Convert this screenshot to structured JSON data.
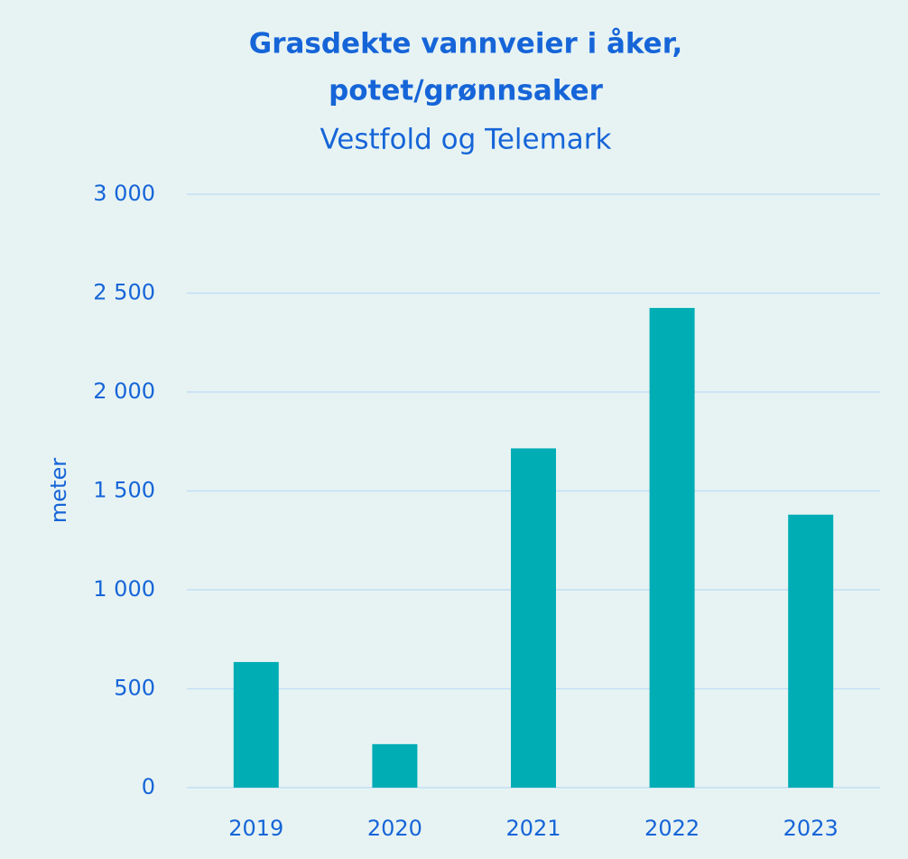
{
  "chart_data": {
    "type": "bar",
    "title": [
      "Grasdekte vannveier i åker,",
      "potet/grønnsaker"
    ],
    "subtitle": "Vestfold og Telemark",
    "ylabel": "meter",
    "categories": [
      "2019",
      "2020",
      "2021",
      "2022",
      "2023"
    ],
    "values": [
      635,
      220,
      1715,
      2425,
      1380
    ],
    "color": "#00adb5",
    "ylim": [
      0,
      3000
    ],
    "yticks": [
      0,
      500,
      {
        "value": 1000,
        "label": "1 000"
      },
      {
        "value": 1500,
        "label": "1 500"
      },
      {
        "value": 2000,
        "label": "2 000"
      },
      {
        "value": 2500,
        "label": "2 500"
      },
      {
        "value": 3000,
        "label": "3 000"
      }
    ],
    "grid": true
  }
}
